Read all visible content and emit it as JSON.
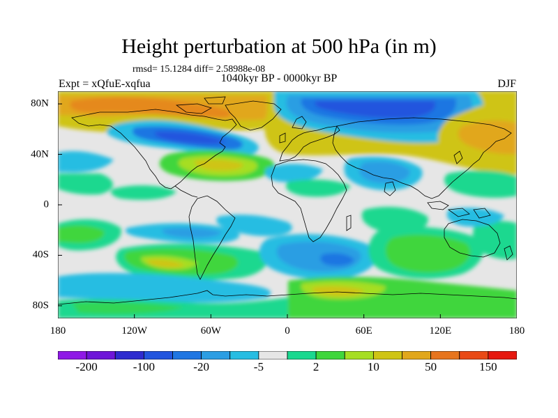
{
  "title": "Height perturbation at 500 hPa (in m)",
  "stats": "rmsd= 15.1284 diff= 2.58988e-08",
  "period": "1040kyr BP - 0000kyr BP",
  "experiment": "Expt = xQfuE-xqfua",
  "season": "DJF",
  "map": {
    "projection": "cylindrical equidistant",
    "lon_range": [
      -180,
      180
    ],
    "lat_range": [
      -90,
      90
    ],
    "x_ticks": [
      "180",
      "120W",
      "60W",
      "0",
      "60E",
      "120E",
      "180"
    ],
    "y_ticks": [
      "80N",
      "40N",
      "0",
      "40S",
      "80S"
    ],
    "coastlines": true,
    "background_color": "#e6e6e6"
  },
  "colorbar": {
    "colors": [
      "#8f1ae6",
      "#6e16d8",
      "#2e2bcf",
      "#2255de",
      "#1f76e2",
      "#2c9ee3",
      "#27bde2",
      "#e6e6e6",
      "#1ad88f",
      "#3fd63c",
      "#a6de22",
      "#cfc414",
      "#e1a71b",
      "#e7751e",
      "#e94a16",
      "#e6190f"
    ],
    "labels": [
      {
        "text": "-200",
        "boundary": 1
      },
      {
        "text": "-100",
        "boundary": 3
      },
      {
        "text": "-20",
        "boundary": 5
      },
      {
        "text": "-5",
        "boundary": 7
      },
      {
        "text": "2",
        "boundary": 9
      },
      {
        "text": "10",
        "boundary": 11
      },
      {
        "text": "50",
        "boundary": 13
      },
      {
        "text": "150",
        "boundary": 15
      }
    ]
  }
}
